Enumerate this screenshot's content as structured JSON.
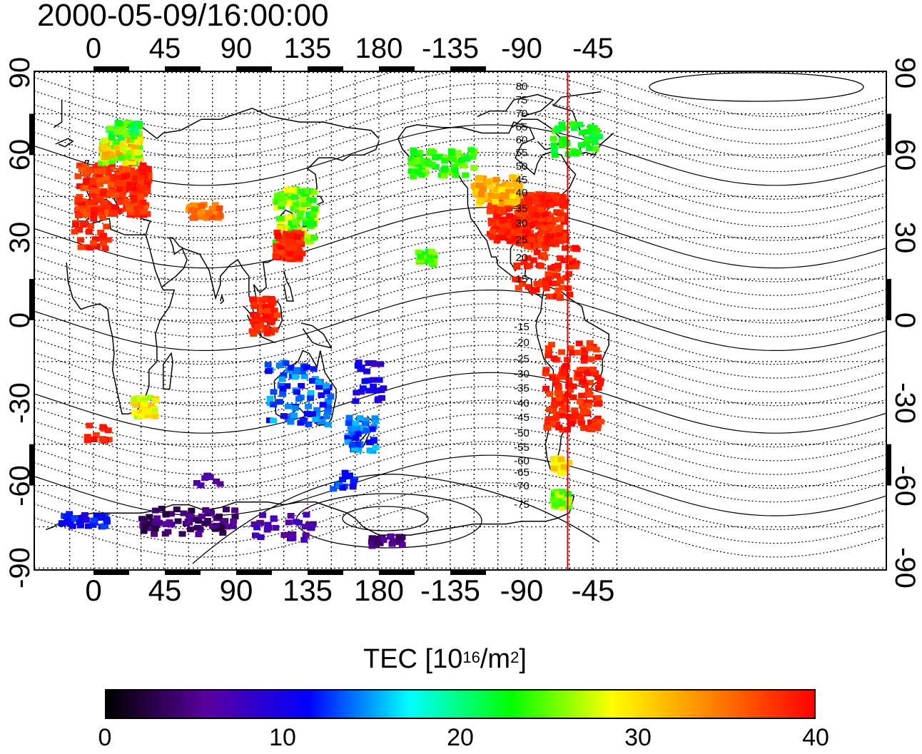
{
  "title": "2000-05-09/16:00:00",
  "map": {
    "longitude_ticks": [
      "0",
      "45",
      "90",
      "135",
      "180",
      "-135",
      "-90",
      "-45"
    ],
    "latitude_ticks": [
      "90",
      "60",
      "30",
      "0",
      "-30",
      "-60",
      "-90"
    ],
    "magnetic_latitude_labels": [
      "80",
      "75",
      "70",
      "65",
      "60",
      "55",
      "50",
      "45",
      "40",
      "35",
      "30",
      "25",
      "20",
      "15",
      "-15",
      "-20",
      "-25",
      "-30",
      "-35",
      "-40",
      "-45",
      "-50",
      "-55",
      "-60",
      "-65",
      "-70",
      "-75"
    ],
    "marker_longitude": -61,
    "marker_color": "#e00000"
  },
  "colorbar": {
    "title_main": "TEC  [10",
    "title_sup1": "16",
    "title_mid": "/m",
    "title_sup2": "2",
    "title_end": "]",
    "ticks": [
      "0",
      "10",
      "20",
      "30",
      "40"
    ],
    "range": [
      0,
      40
    ],
    "colors": [
      "#000000",
      "#5a00a0",
      "#0000ff",
      "#00ffff",
      "#00ff00",
      "#ffff00",
      "#ff8000",
      "#ff0000"
    ]
  }
}
